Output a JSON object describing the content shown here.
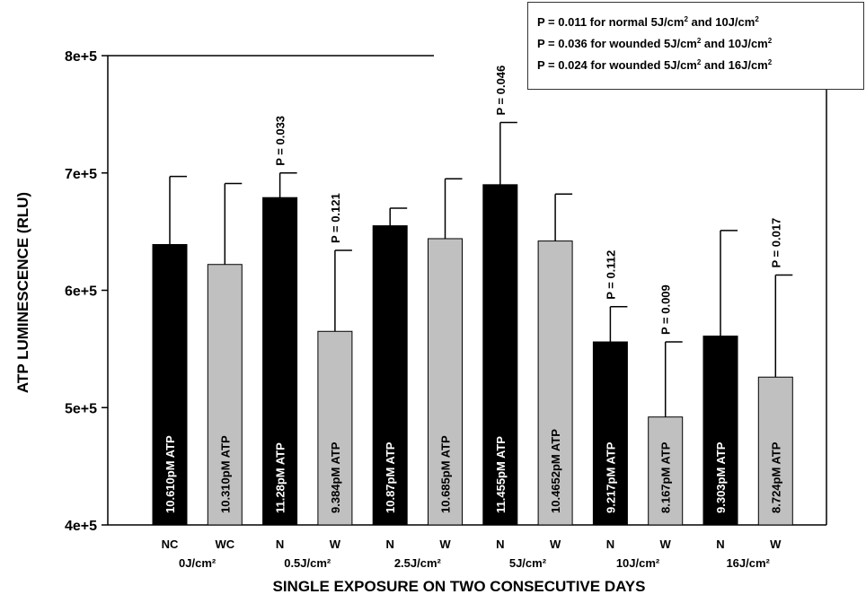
{
  "chart_data": {
    "type": "bar",
    "ylabel": "ATP LUMINESCENCE (RLU)",
    "xlabel": "SINGLE EXPOSURE ON TWO CONSECUTIVE DAYS",
    "ylim": [
      400000,
      800000
    ],
    "yticks": [
      {
        "value": 400000,
        "label": "4e+5"
      },
      {
        "value": 500000,
        "label": "5e+5"
      },
      {
        "value": 600000,
        "label": "6e+5"
      },
      {
        "value": 700000,
        "label": "7e+5"
      },
      {
        "value": 800000,
        "label": "8e+5"
      }
    ],
    "colors": {
      "normal": "#000000",
      "wounded": "#c0c0c0"
    },
    "groups": [
      {
        "label": "0J/cm²"
      },
      {
        "label": "0.5J/cm²"
      },
      {
        "label": "2.5J/cm²"
      },
      {
        "label": "5J/cm²"
      },
      {
        "label": "10J/cm²"
      },
      {
        "label": "16J/cm²"
      }
    ],
    "bars": [
      {
        "group": 0,
        "category": "NC",
        "series": "normal",
        "value": 639000,
        "error": 697000,
        "bar_label": "10.610pM ATP",
        "p_label": ""
      },
      {
        "group": 0,
        "category": "WC",
        "series": "wounded",
        "value": 622000,
        "error": 691000,
        "bar_label": "10.310pM ATP",
        "p_label": ""
      },
      {
        "group": 1,
        "category": "N",
        "series": "normal",
        "value": 679000,
        "error": 700000,
        "bar_label": "11.28pM ATP",
        "p_label": "P = 0.033"
      },
      {
        "group": 1,
        "category": "W",
        "series": "wounded",
        "value": 565000,
        "error": 634000,
        "bar_label": "9.384pM ATP",
        "p_label": "P = 0.121"
      },
      {
        "group": 2,
        "category": "N",
        "series": "normal",
        "value": 655000,
        "error": 670000,
        "bar_label": "10.87pM ATP",
        "p_label": ""
      },
      {
        "group": 2,
        "category": "W",
        "series": "wounded",
        "value": 644000,
        "error": 695000,
        "bar_label": "10.685pM ATP",
        "p_label": ""
      },
      {
        "group": 3,
        "category": "N",
        "series": "normal",
        "value": 690000,
        "error": 743000,
        "bar_label": "11.455pM ATP",
        "p_label": "P = 0.046"
      },
      {
        "group": 3,
        "category": "W",
        "series": "wounded",
        "value": 642000,
        "error": 682000,
        "bar_label": "10.4652pM ATP",
        "p_label": ""
      },
      {
        "group": 4,
        "category": "N",
        "series": "normal",
        "value": 556000,
        "error": 586000,
        "bar_label": "9.217pM ATP",
        "p_label": "P = 0.112"
      },
      {
        "group": 4,
        "category": "W",
        "series": "wounded",
        "value": 492000,
        "error": 556000,
        "bar_label": "8.167pM ATP",
        "p_label": "P = 0.009"
      },
      {
        "group": 5,
        "category": "N",
        "series": "normal",
        "value": 561000,
        "error": 651000,
        "bar_label": "9.303pM ATP",
        "p_label": ""
      },
      {
        "group": 5,
        "category": "W",
        "series": "wounded",
        "value": 526000,
        "error": 613000,
        "bar_label": "8.724pM ATP",
        "p_label": "P = 0.017"
      }
    ],
    "annotations": [
      {
        "text": "P = 0.011 for normal 5J/cm",
        "sup": "2",
        "mid": " and 10J/cm",
        "sup2": "2"
      },
      {
        "text": "P = 0.036 for wounded 5J/cm",
        "sup": "2",
        "mid": " and 10J/cm",
        "sup2": "2"
      },
      {
        "text": "P = 0.024 for wounded 5J/cm",
        "sup": "2",
        "mid": " and 16J/cm",
        "sup2": "2"
      }
    ]
  }
}
